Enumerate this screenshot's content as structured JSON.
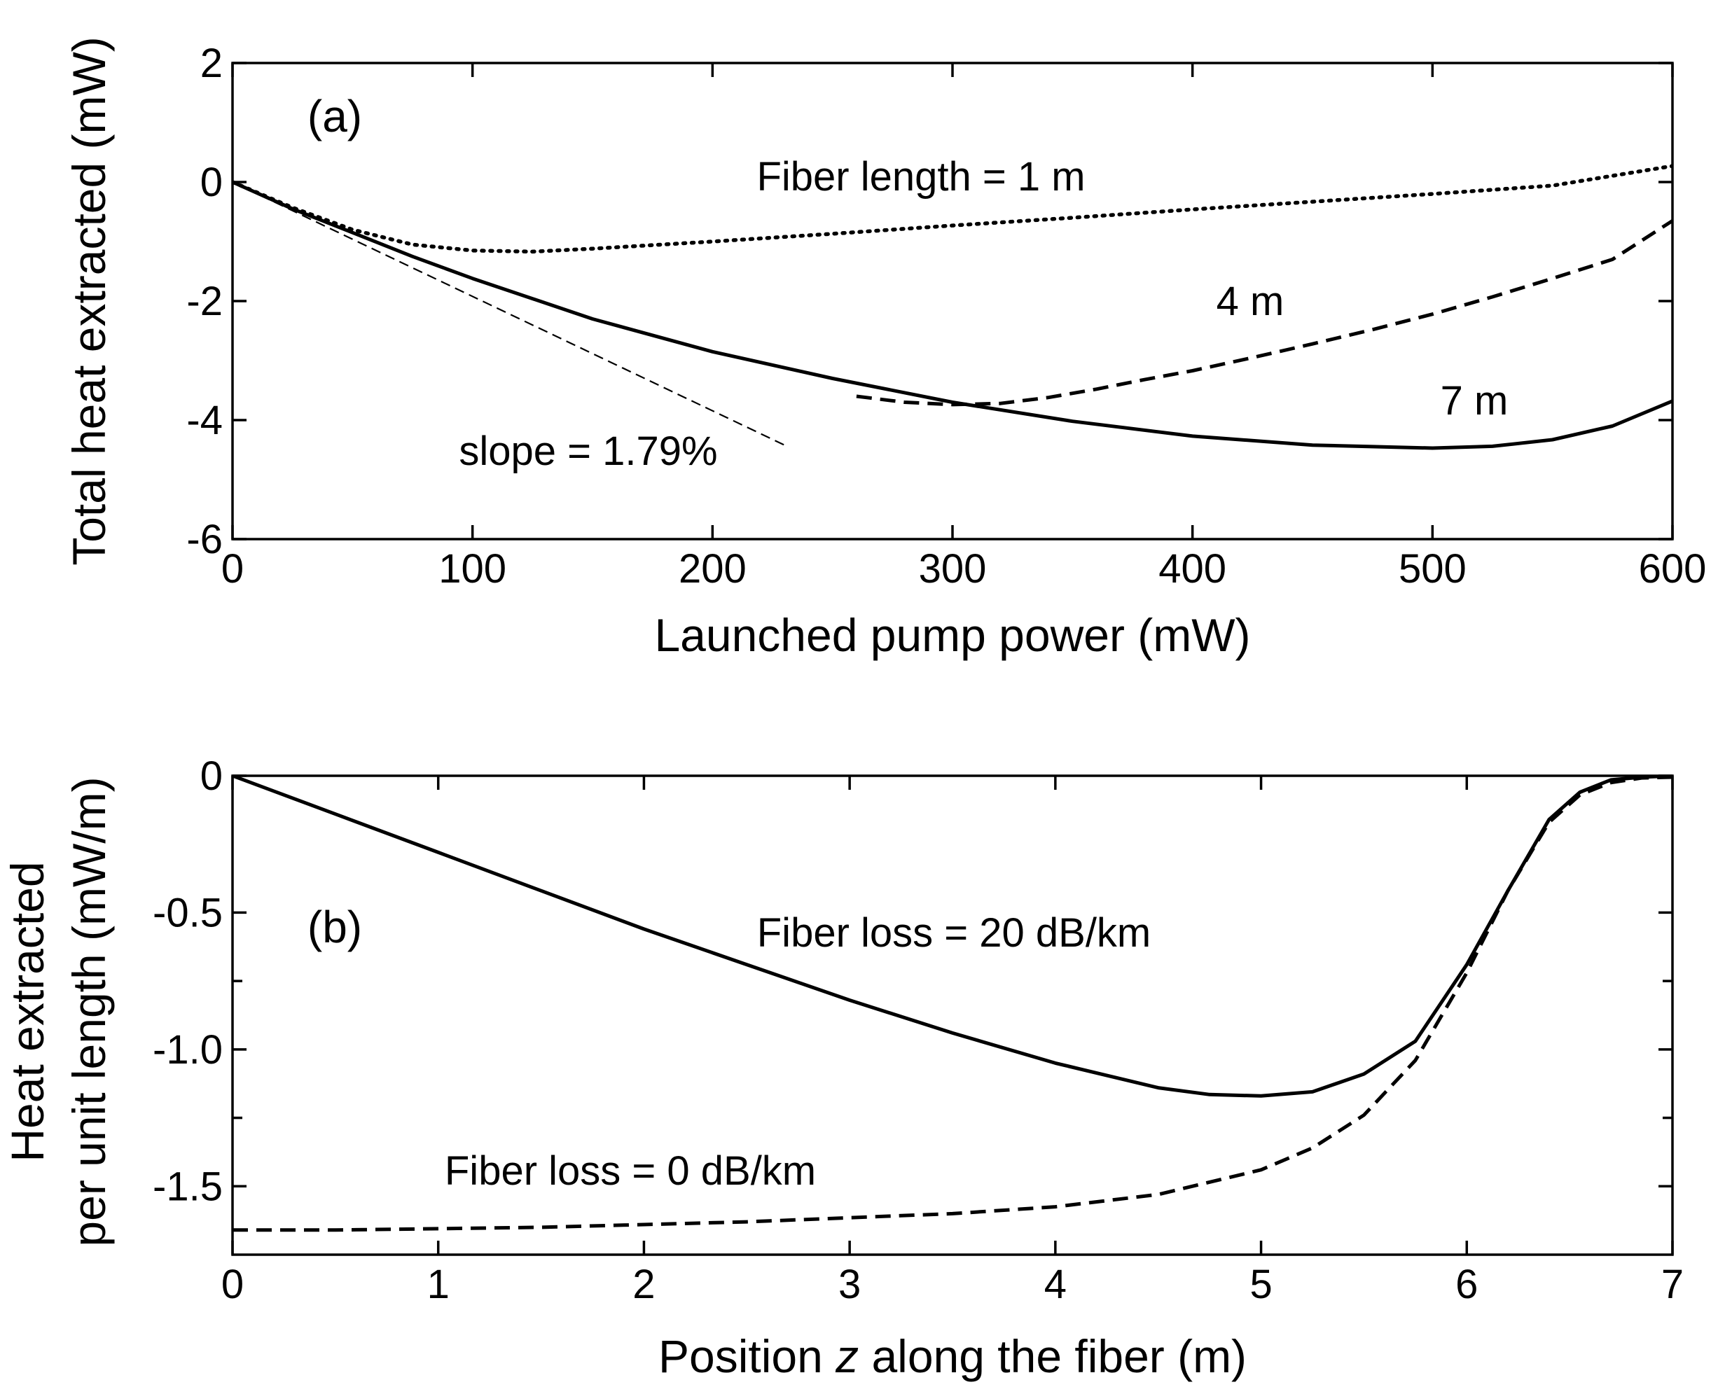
{
  "chart_data": [
    {
      "type": "line",
      "panel_label": "(a)",
      "xlabel": "Launched pump power (mW)",
      "ylabel": "Total heat extracted (mW)",
      "xlim": [
        0,
        600
      ],
      "ylim": [
        -6,
        2
      ],
      "xticks": [
        0,
        100,
        200,
        300,
        400,
        500,
        600
      ],
      "xtick_labels": [
        "0",
        "100",
        "200",
        "300",
        "400",
        "500",
        "600"
      ],
      "yticks": [
        -6,
        -4,
        -2,
        0,
        2
      ],
      "ytick_labels": [
        "-6",
        "-4",
        "-2",
        "0",
        "2"
      ],
      "grid": false,
      "series": [
        {
          "name": "Fiber length = 1 m",
          "style": "dotted",
          "x": [
            0,
            25,
            50,
            75,
            100,
            125,
            150,
            200,
            250,
            300,
            350,
            400,
            450,
            500,
            550,
            600
          ],
          "y": [
            0,
            -0.43,
            -0.8,
            -1.05,
            -1.15,
            -1.17,
            -1.12,
            -1.0,
            -0.87,
            -0.73,
            -0.6,
            -0.46,
            -0.33,
            -0.2,
            -0.06,
            0.27
          ]
        },
        {
          "name": "4 m",
          "style": "dashed",
          "x": [
            260,
            280,
            300,
            320,
            340,
            360,
            380,
            400,
            425,
            450,
            475,
            500,
            525,
            550,
            575,
            600
          ],
          "y": [
            -3.6,
            -3.7,
            -3.74,
            -3.72,
            -3.62,
            -3.48,
            -3.32,
            -3.17,
            -2.95,
            -2.72,
            -2.48,
            -2.22,
            -1.93,
            -1.62,
            -1.3,
            -0.65
          ]
        },
        {
          "name": "7 m",
          "style": "solid",
          "x": [
            0,
            25,
            50,
            75,
            100,
            150,
            200,
            250,
            300,
            350,
            400,
            450,
            500,
            525,
            550,
            575,
            600
          ],
          "y": [
            0,
            -0.45,
            -0.85,
            -1.25,
            -1.62,
            -2.3,
            -2.85,
            -3.3,
            -3.7,
            -4.02,
            -4.27,
            -4.42,
            -4.47,
            -4.44,
            -4.33,
            -4.1,
            -3.68
          ]
        },
        {
          "name": "slope = 1.79%",
          "style": "fine-dashed",
          "x": [
            0,
            230
          ],
          "y": [
            0,
            -4.42
          ]
        }
      ],
      "annotations": [
        "Fiber length = 1 m",
        "4 m",
        "7 m",
        "slope = 1.79%"
      ]
    },
    {
      "type": "line",
      "panel_label": "(b)",
      "xlabel_parts": [
        "Position ",
        "z",
        " along the fiber (m)"
      ],
      "ylabel_lines": [
        "Heat extracted",
        "per unit length (mW/m)"
      ],
      "xlim": [
        0,
        7
      ],
      "ylim": [
        -1.75,
        0
      ],
      "xticks": [
        0,
        1,
        2,
        3,
        4,
        5,
        6,
        7
      ],
      "xtick_labels": [
        "0",
        "1",
        "2",
        "3",
        "4",
        "5",
        "6",
        "7"
      ],
      "yticks": [
        0,
        -0.5,
        -1.0,
        -1.5
      ],
      "ytick_labels": [
        "0",
        "-0.5",
        "-1.0",
        "-1.5"
      ],
      "grid": false,
      "series": [
        {
          "name": "Fiber loss = 20 dB/km",
          "style": "solid",
          "x": [
            0,
            0.5,
            1,
            1.5,
            2,
            2.5,
            3,
            3.5,
            4,
            4.5,
            4.75,
            5,
            5.25,
            5.5,
            5.75,
            6,
            6.2,
            6.4,
            6.55,
            6.7,
            6.85,
            7
          ],
          "y": [
            0,
            -0.14,
            -0.28,
            -0.42,
            -0.56,
            -0.69,
            -0.82,
            -0.94,
            -1.05,
            -1.14,
            -1.165,
            -1.17,
            -1.155,
            -1.09,
            -0.97,
            -0.69,
            -0.42,
            -0.16,
            -0.06,
            -0.015,
            -0.005,
            0
          ]
        },
        {
          "name": "Fiber loss = 0 dB/km",
          "style": "dashed",
          "x": [
            0,
            0.5,
            1,
            1.5,
            2,
            2.5,
            3,
            3.5,
            4,
            4.5,
            5,
            5.25,
            5.5,
            5.75,
            6,
            6.2,
            6.4,
            6.55,
            6.7,
            6.85,
            7
          ],
          "y": [
            -1.66,
            -1.66,
            -1.655,
            -1.65,
            -1.64,
            -1.63,
            -1.615,
            -1.6,
            -1.575,
            -1.53,
            -1.44,
            -1.36,
            -1.24,
            -1.04,
            -0.72,
            -0.42,
            -0.17,
            -0.07,
            -0.025,
            -0.008,
            -0.005
          ]
        }
      ],
      "annotations": [
        "Fiber loss = 20 dB/km",
        "Fiber loss = 0 dB/km"
      ]
    }
  ]
}
